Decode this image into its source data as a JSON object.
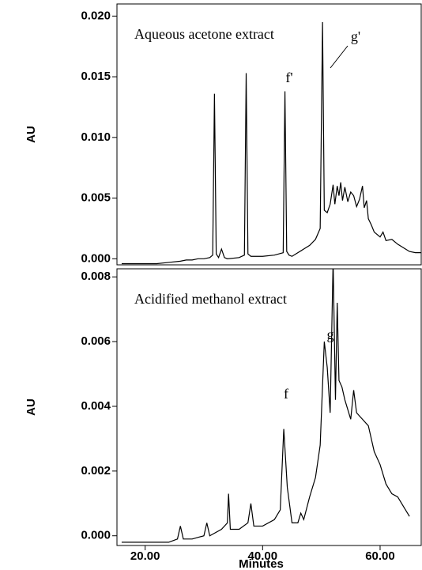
{
  "chart_data": [
    {
      "type": "line",
      "ylabel": "AU",
      "color": "#000000",
      "annotations": [
        "Aqueous acetone extract",
        "f'",
        "g'"
      ],
      "xlim": [
        15.2,
        67
      ],
      "ylim": [
        -0.0005,
        0.021
      ],
      "yticks": [
        {
          "value": 0,
          "label": "0.000"
        },
        {
          "value": 0.005,
          "label": "0.005"
        },
        {
          "value": 0.01,
          "label": "0.010"
        },
        {
          "value": 0.015,
          "label": "0.015"
        },
        {
          "value": 0.02,
          "label": "0.020"
        }
      ],
      "x": [
        16,
        20,
        22,
        24,
        26,
        27,
        28,
        29,
        30,
        31,
        31.5,
        31.8,
        32.1,
        32.5,
        33,
        33.5,
        34,
        36,
        36.9,
        37.2,
        37.5,
        38,
        40,
        42,
        43.5,
        43.8,
        44.1,
        44.5,
        45,
        46,
        47,
        48,
        49,
        49.8,
        50.2,
        50.5,
        51,
        51.5,
        52,
        52.3,
        52.7,
        53,
        53.3,
        53.6,
        54,
        54.5,
        55,
        55.5,
        56,
        56.5,
        57,
        57.3,
        57.7,
        58,
        58.5,
        59,
        60,
        60.5,
        61,
        62,
        63,
        64,
        65,
        66,
        67
      ],
      "values": [
        -0.0004,
        -0.0004,
        -0.0004,
        -0.0003,
        -0.0002,
        -0.0001,
        -0.0001,
        0,
        0,
        0.0001,
        0.0003,
        0.0136,
        0.0004,
        0.0001,
        0.0008,
        0.0001,
        0,
        0.0001,
        0.0003,
        0.0153,
        0.0004,
        0.0002,
        0.0002,
        0.0003,
        0.0005,
        0.0138,
        0.0006,
        0.0003,
        0.0002,
        0.0005,
        0.0008,
        0.0011,
        0.0016,
        0.0025,
        0.0195,
        0.004,
        0.0038,
        0.0045,
        0.0061,
        0.0045,
        0.006,
        0.0052,
        0.0063,
        0.0048,
        0.0059,
        0.0047,
        0.0055,
        0.0052,
        0.0043,
        0.0049,
        0.006,
        0.0042,
        0.0048,
        0.0033,
        0.0028,
        0.0022,
        0.0018,
        0.0022,
        0.0015,
        0.0016,
        0.0012,
        0.0009,
        0.0006,
        0.0005,
        0.0005
      ]
    },
    {
      "type": "line",
      "ylabel": "AU",
      "xlabel": "Minutes",
      "color": "#000000",
      "annotations": [
        "Acidified methanol extract",
        "f",
        "g"
      ],
      "xlim": [
        15.2,
        67
      ],
      "ylim": [
        -0.0003,
        0.00825
      ],
      "xticks": [
        {
          "value": 20,
          "label": "20.00"
        },
        {
          "value": 40,
          "label": "40.00"
        },
        {
          "value": 60,
          "label": "60.00"
        }
      ],
      "yticks": [
        {
          "value": 0,
          "label": "0.000"
        },
        {
          "value": 0.002,
          "label": "0.002"
        },
        {
          "value": 0.004,
          "label": "0.004"
        },
        {
          "value": 0.006,
          "label": "0.006"
        },
        {
          "value": 0.008,
          "label": "0.008"
        }
      ],
      "x": [
        16,
        20,
        22,
        24,
        25.5,
        26,
        26.5,
        28,
        30,
        30.5,
        31,
        33,
        34,
        34.2,
        34.5,
        36,
        37.5,
        38,
        38.5,
        40,
        42,
        43,
        43.6,
        44.2,
        45,
        46,
        46.5,
        47,
        48,
        49,
        49.8,
        50.5,
        51,
        51.5,
        52,
        52.4,
        52.7,
        53,
        53.5,
        54,
        55,
        55.5,
        56,
        57,
        58,
        59,
        60,
        61,
        62,
        63,
        64,
        65
      ],
      "values": [
        -0.0002,
        -0.0002,
        -0.0002,
        -0.0002,
        -0.0001,
        0.0003,
        -0.0001,
        -0.0001,
        0,
        0.0004,
        0,
        0.0002,
        0.0004,
        0.0013,
        0.0002,
        0.0002,
        0.0004,
        0.001,
        0.0003,
        0.0003,
        0.0005,
        0.0008,
        0.0033,
        0.0015,
        0.0004,
        0.0004,
        0.0007,
        0.0005,
        0.0012,
        0.0018,
        0.0028,
        0.006,
        0.0052,
        0.0038,
        0.0085,
        0.0042,
        0.0072,
        0.0048,
        0.0046,
        0.0042,
        0.0036,
        0.0045,
        0.0038,
        0.0036,
        0.0034,
        0.0026,
        0.0022,
        0.0016,
        0.0013,
        0.0012,
        0.0009,
        0.0006
      ]
    }
  ]
}
